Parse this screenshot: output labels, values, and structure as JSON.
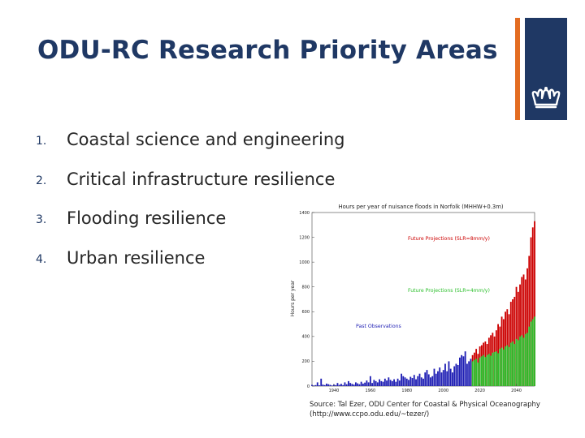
{
  "slide": {
    "title": "ODU-RC Research Priority Areas",
    "logo_icon": "crown-icon",
    "colors": {
      "title": "#1f3864",
      "accent": "#e36c21",
      "logo_bg": "#1f3864"
    }
  },
  "list": [
    {
      "num": "1.",
      "text": "Coastal science and engineering"
    },
    {
      "num": "2.",
      "text": "Critical infrastructure resilience"
    },
    {
      "num": "3.",
      "text": "Flooding resilience"
    },
    {
      "num": "4.",
      "text": "Urban resilience"
    }
  ],
  "source": {
    "line1": "Source: Tal Ezer, ODU Center for Coastal & Physical Oceanography",
    "line2": "(http://www.ccpo.odu.edu/~tezer/)"
  },
  "chart_data": {
    "type": "bar",
    "title": "Hours per year of nuisance floods in Norfolk (MHHW+0.3m)",
    "ylabel": "Hours per year",
    "ylim": [
      0,
      1400
    ],
    "xlim": [
      1928,
      2050
    ],
    "yticks": [
      0,
      200,
      400,
      600,
      800,
      1000,
      1200,
      1400
    ],
    "xticks": [
      1940,
      1960,
      1980,
      2000,
      2020,
      2040
    ],
    "annotations": [
      {
        "text": "Future Projections (SLR=8mm/y)",
        "color": "#cc0000"
      },
      {
        "text": "Future Projections (SLR=4mm/y)",
        "color": "#2bbf2b"
      },
      {
        "text": "Past Observations",
        "color": "#1f1fb4"
      }
    ],
    "series": [
      {
        "name": "Past Observations",
        "color": "#1f1fb4",
        "years": [
          1928,
          1929,
          1930,
          1931,
          1932,
          1933,
          1934,
          1935,
          1936,
          1937,
          1938,
          1939,
          1940,
          1941,
          1942,
          1943,
          1944,
          1945,
          1946,
          1947,
          1948,
          1949,
          1950,
          1951,
          1952,
          1953,
          1954,
          1955,
          1956,
          1957,
          1958,
          1959,
          1960,
          1961,
          1962,
          1963,
          1964,
          1965,
          1966,
          1967,
          1968,
          1969,
          1970,
          1971,
          1972,
          1973,
          1974,
          1975,
          1976,
          1977,
          1978,
          1979,
          1980,
          1981,
          1982,
          1983,
          1984,
          1985,
          1986,
          1987,
          1988,
          1989,
          1990,
          1991,
          1992,
          1993,
          1994,
          1995,
          1996,
          1997,
          1998,
          1999,
          2000,
          2001,
          2002,
          2003,
          2004,
          2005,
          2006,
          2007,
          2008,
          2009,
          2010,
          2011,
          2012,
          2013,
          2014,
          2015
        ],
        "values": [
          10,
          5,
          8,
          30,
          6,
          60,
          12,
          8,
          20,
          15,
          10,
          5,
          12,
          8,
          25,
          10,
          18,
          8,
          30,
          15,
          40,
          25,
          18,
          12,
          30,
          22,
          15,
          35,
          20,
          28,
          45,
          30,
          80,
          25,
          50,
          40,
          30,
          55,
          40,
          35,
          60,
          45,
          70,
          50,
          40,
          55,
          35,
          60,
          45,
          100,
          80,
          70,
          60,
          50,
          75,
          65,
          90,
          55,
          80,
          100,
          70,
          60,
          110,
          130,
          95,
          70,
          80,
          140,
          100,
          120,
          150,
          110,
          130,
          180,
          120,
          200,
          140,
          110,
          160,
          180,
          170,
          230,
          250,
          240,
          280,
          180,
          200,
          220
        ]
      },
      {
        "name": "Future Projections (SLR=4mm/y)",
        "color": "#2bbf2b",
        "years": [
          2016,
          2017,
          2018,
          2019,
          2020,
          2021,
          2022,
          2023,
          2024,
          2025,
          2026,
          2027,
          2028,
          2029,
          2030,
          2031,
          2032,
          2033,
          2034,
          2035,
          2036,
          2037,
          2038,
          2039,
          2040,
          2041,
          2042,
          2043,
          2044,
          2045,
          2046,
          2047,
          2048,
          2049,
          2050
        ],
        "values": [
          200,
          210,
          220,
          190,
          230,
          240,
          250,
          235,
          250,
          260,
          245,
          270,
          275,
          280,
          265,
          300,
          310,
          295,
          320,
          330,
          315,
          350,
          360,
          340,
          380,
          370,
          400,
          410,
          390,
          420,
          430,
          480,
          520,
          540,
          560
        ]
      },
      {
        "name": "Future Projections (SLR=8mm/y)",
        "color": "#cc0000",
        "years": [
          2016,
          2017,
          2018,
          2019,
          2020,
          2021,
          2022,
          2023,
          2024,
          2025,
          2026,
          2027,
          2028,
          2029,
          2030,
          2031,
          2032,
          2033,
          2034,
          2035,
          2036,
          2037,
          2038,
          2039,
          2040,
          2041,
          2042,
          2043,
          2044,
          2045,
          2046,
          2047,
          2048,
          2049,
          2050
        ],
        "values": [
          250,
          270,
          300,
          260,
          320,
          330,
          350,
          360,
          340,
          390,
          410,
          430,
          400,
          450,
          500,
          480,
          560,
          540,
          600,
          620,
          580,
          680,
          700,
          720,
          800,
          760,
          820,
          880,
          900,
          860,
          950,
          1050,
          1200,
          1280,
          1330
        ]
      }
    ]
  }
}
